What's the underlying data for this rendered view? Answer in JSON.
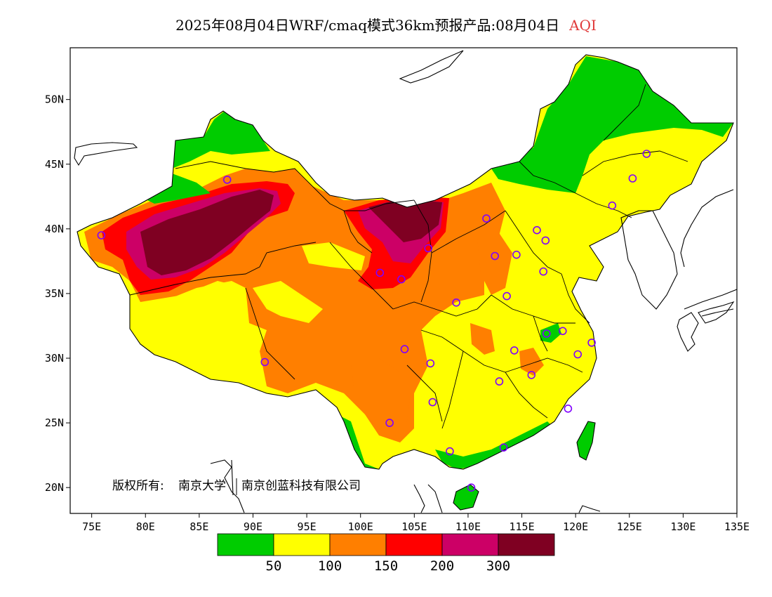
{
  "title": {
    "main": "2025年08月04日WRF/cmaq模式36km预报产品:08月04日",
    "variable": "AQI",
    "variable_color": "#e03a3a"
  },
  "copyright": {
    "prefix": "版权所有:",
    "org1": "南京大学",
    "org2": "南京创蓝科技有限公司"
  },
  "axes": {
    "lon_min": 73,
    "lon_max": 135,
    "lat_min": 18,
    "lat_max": 54,
    "x_ticks": [
      {
        "value": 75,
        "label": "75E"
      },
      {
        "value": 80,
        "label": "80E"
      },
      {
        "value": 85,
        "label": "85E"
      },
      {
        "value": 90,
        "label": "90E"
      },
      {
        "value": 95,
        "label": "95E"
      },
      {
        "value": 100,
        "label": "100E"
      },
      {
        "value": 105,
        "label": "105E"
      },
      {
        "value": 110,
        "label": "110E"
      },
      {
        "value": 115,
        "label": "115E"
      },
      {
        "value": 120,
        "label": "120E"
      },
      {
        "value": 125,
        "label": "125E"
      },
      {
        "value": 130,
        "label": "130E"
      },
      {
        "value": 135,
        "label": "135E"
      }
    ],
    "y_ticks": [
      {
        "value": 20,
        "label": "20N"
      },
      {
        "value": 25,
        "label": "25N"
      },
      {
        "value": 30,
        "label": "30N"
      },
      {
        "value": 35,
        "label": "35N"
      },
      {
        "value": 40,
        "label": "40N"
      },
      {
        "value": 45,
        "label": "45N"
      },
      {
        "value": 50,
        "label": "50N"
      }
    ]
  },
  "legend": {
    "colors": [
      "#00cc00",
      "#ffff00",
      "#ff7f00",
      "#ff0000",
      "#cc0066",
      "#7f0022"
    ],
    "labels": [
      "50",
      "100",
      "150",
      "200",
      "300"
    ]
  },
  "palette": {
    "good": "#00cc00",
    "moderate": "#ffff00",
    "sensitive": "#ff7f00",
    "unhealthy": "#ff0000",
    "very_unhealthy": "#cc0066",
    "hazardous": "#7f0022",
    "station_marker": "#8000ff"
  },
  "stations": [
    [
      126.6,
      45.8
    ],
    [
      125.3,
      43.9
    ],
    [
      123.4,
      41.8
    ],
    [
      111.7,
      40.8
    ],
    [
      116.4,
      39.9
    ],
    [
      117.2,
      39.1
    ],
    [
      114.5,
      38.0
    ],
    [
      112.5,
      37.9
    ],
    [
      117.0,
      36.7
    ],
    [
      113.6,
      34.8
    ],
    [
      108.9,
      34.3
    ],
    [
      103.8,
      36.1
    ],
    [
      101.8,
      36.6
    ],
    [
      106.3,
      38.5
    ],
    [
      87.6,
      43.8
    ],
    [
      91.1,
      29.7
    ],
    [
      104.1,
      30.7
    ],
    [
      106.5,
      29.6
    ],
    [
      106.7,
      26.6
    ],
    [
      102.7,
      25.0
    ],
    [
      108.3,
      22.8
    ],
    [
      113.3,
      23.1
    ],
    [
      110.3,
      20.0
    ],
    [
      119.3,
      26.1
    ],
    [
      112.9,
      28.2
    ],
    [
      115.9,
      28.7
    ],
    [
      114.3,
      30.6
    ],
    [
      117.3,
      31.9
    ],
    [
      118.8,
      32.1
    ],
    [
      120.2,
      30.3
    ],
    [
      121.5,
      31.2
    ],
    [
      75.9,
      39.5
    ]
  ]
}
